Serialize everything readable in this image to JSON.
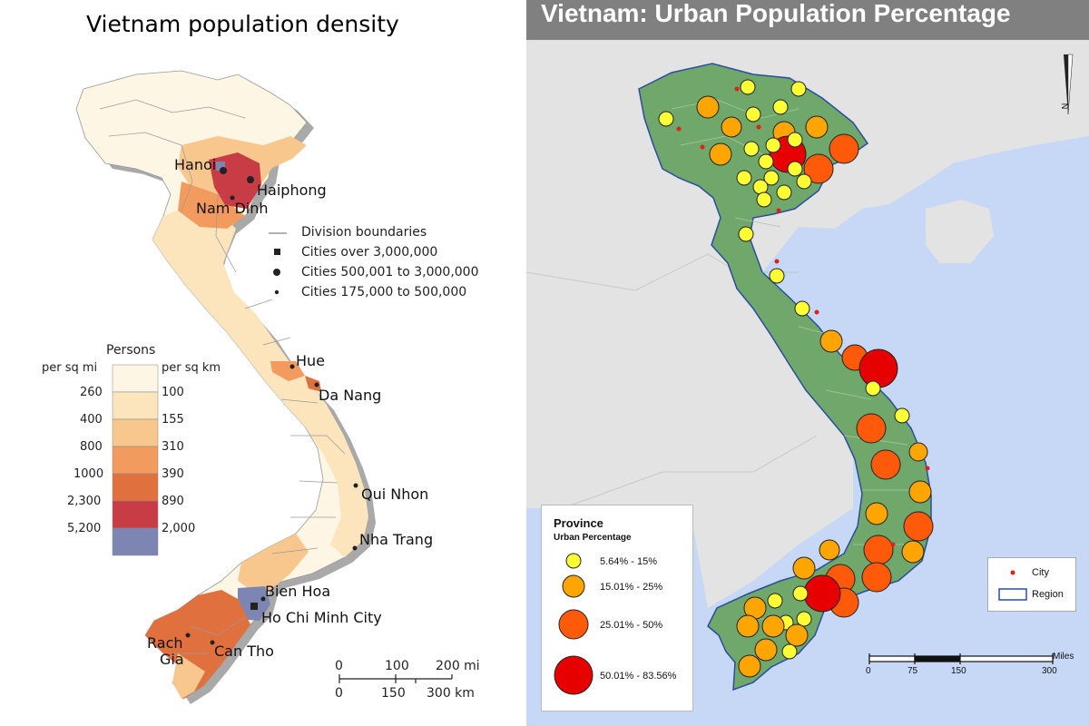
{
  "left_map": {
    "title": "Vietnam population density",
    "cities": [
      {
        "name": "Hanoi",
        "symbol": "square"
      },
      {
        "name": "Haiphong",
        "symbol": "circle"
      },
      {
        "name": "Nam Dinh",
        "symbol": "dot"
      },
      {
        "name": "Hue",
        "symbol": "dot"
      },
      {
        "name": "Da Nang",
        "symbol": "dot"
      },
      {
        "name": "Qui Nhon",
        "symbol": "dot"
      },
      {
        "name": "Nha Trang",
        "symbol": "dot"
      },
      {
        "name": "Bien Hoa",
        "symbol": "dot"
      },
      {
        "name": "Ho Chi Minh City",
        "symbol": "square"
      },
      {
        "name": "Can Tho",
        "symbol": "dot"
      },
      {
        "name": "Rach",
        "symbol": "dot"
      },
      {
        "name": "Gia",
        "symbol": "none"
      }
    ],
    "symbol_legend": [
      {
        "label": "Division boundaries",
        "symbol": "line"
      },
      {
        "label": "Cities over 3,000,000",
        "symbol": "square"
      },
      {
        "label": "Cities 500,001 to 3,000,000",
        "symbol": "circle"
      },
      {
        "label": "Cities 175,000 to 500,000",
        "symbol": "dot"
      }
    ],
    "density_legend": {
      "title": "Persons",
      "col_mi": "per sq mi",
      "col_km": "per sq km",
      "rows": [
        {
          "mi": "260",
          "km": "100",
          "color": "#fdf6e4"
        },
        {
          "mi": "400",
          "km": "155",
          "color": "#fce4bd"
        },
        {
          "mi": "800",
          "km": "310",
          "color": "#f8c78e"
        },
        {
          "mi": "1000",
          "km": "390",
          "color": "#f39a5e"
        },
        {
          "mi": "2,300",
          "km": "890",
          "color": "#e0703e"
        },
        {
          "mi": "5,200",
          "km": "2,000",
          "color": "#c83c45"
        },
        {
          "mi": "",
          "km": "",
          "color": "#7d86b3"
        }
      ]
    },
    "scale": {
      "mi": [
        "0",
        "100",
        "200 mi"
      ],
      "km": [
        "0",
        "150",
        "300 km"
      ]
    }
  },
  "right_map": {
    "title": "Vietnam: Urban Population Percentage",
    "colors": {
      "land": "#6fa86a",
      "sea": "#c6d8f5",
      "neighbor": "#e3e3e3",
      "class1": "#ffff33",
      "class2": "#ffa500",
      "class3": "#ff5a0a",
      "class4": "#e60000",
      "city": "#e0201a"
    },
    "legend": {
      "title": "Province",
      "subtitle": "Urban Percentage",
      "classes": [
        {
          "label": "5.64% - 15%",
          "color": "#ffff33"
        },
        {
          "label": "15.01% - 25%",
          "color": "#ffa500"
        },
        {
          "label": "25.01% - 50%",
          "color": "#ff5a0a"
        },
        {
          "label": "50.01% - 83.56%",
          "color": "#e60000"
        }
      ]
    },
    "symbols": {
      "city": "City",
      "region": "Region"
    },
    "scale": {
      "unit": "Miles",
      "ticks": [
        "0",
        "75",
        "150",
        "300"
      ]
    },
    "north": "N"
  }
}
